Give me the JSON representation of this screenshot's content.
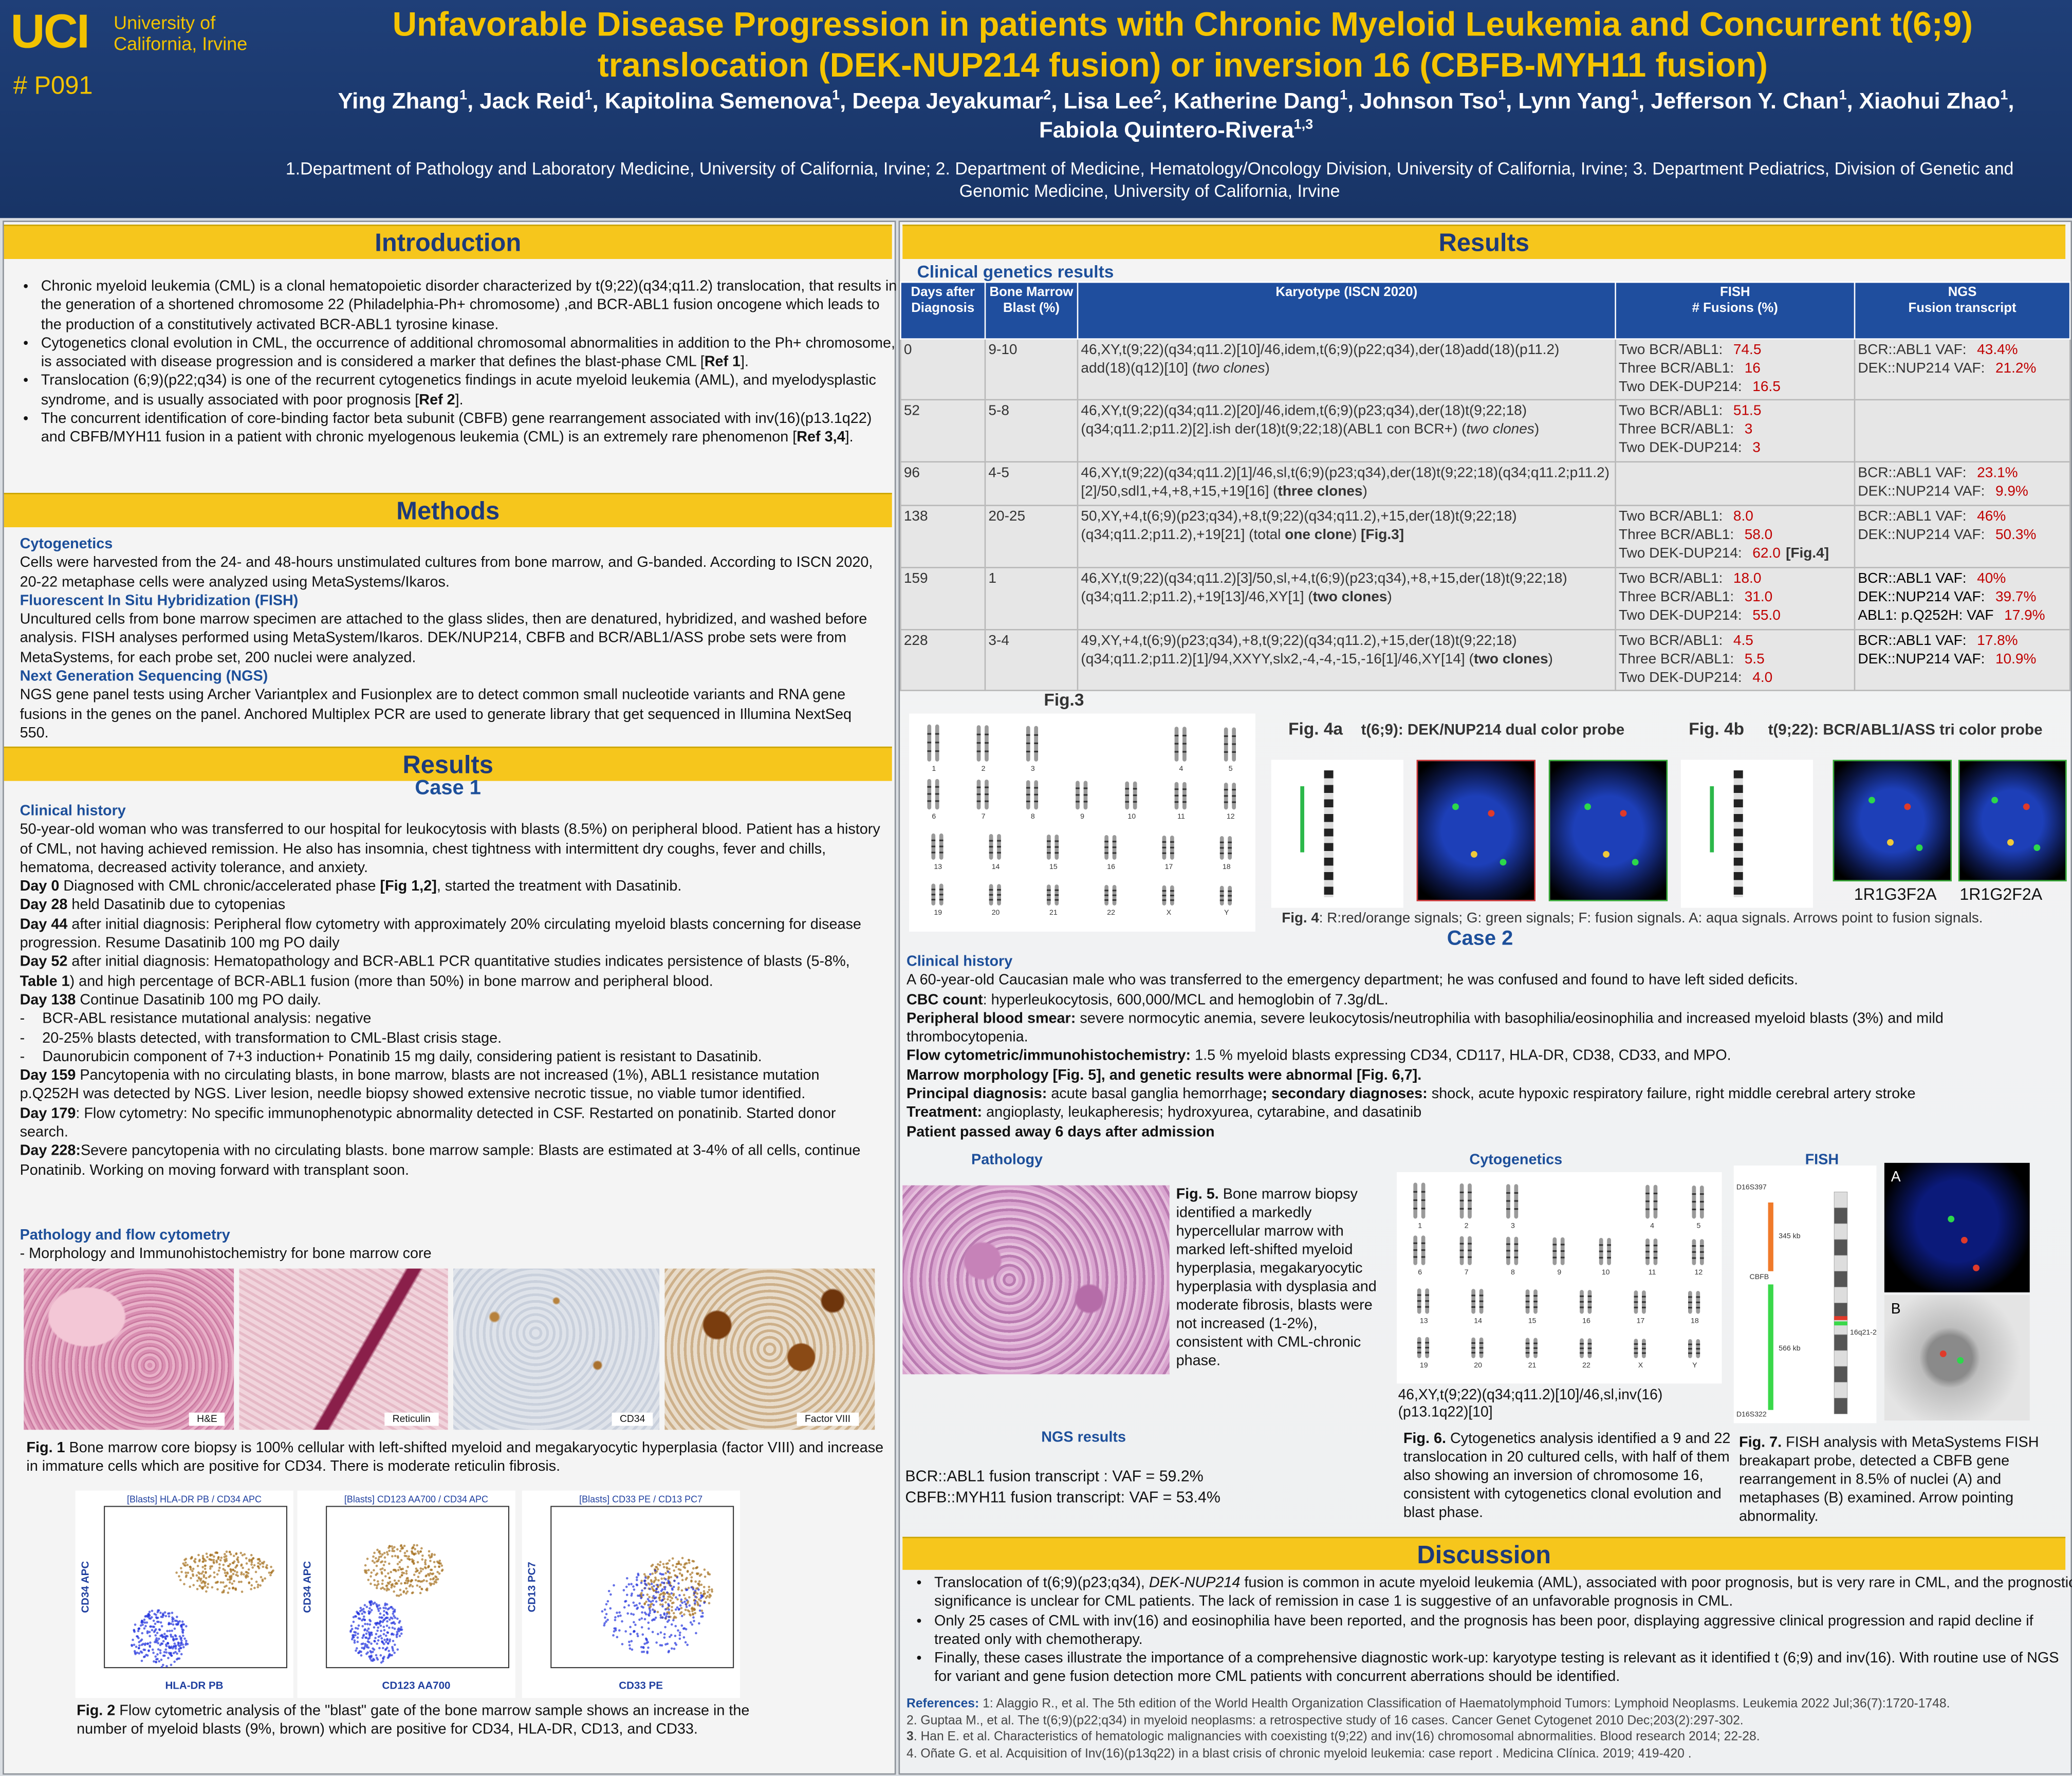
{
  "header": {
    "logo": "UCI",
    "university": "University of California, Irvine",
    "poster_id": "# P091",
    "title": "Unfavorable Disease Progression in patients with Chronic Myeloid Leukemia and Concurrent t(6;9) translocation (DEK-NUP214 fusion) or inversion 16 (CBFB-MYH11 fusion)",
    "authors": [
      "Ying Zhang",
      {
        "sup": "1"
      },
      ", Jack Reid",
      {
        "sup": "1"
      },
      ", Kapitolina Semenova",
      {
        "sup": "1"
      },
      ", Deepa Jeyakumar",
      {
        "sup": "2"
      },
      ", Lisa Lee",
      {
        "sup": "2"
      },
      ", Katherine Dang",
      {
        "sup": "1"
      },
      ", Johnson Tso",
      {
        "sup": "1"
      },
      ", Lynn Yang",
      {
        "sup": "1"
      },
      ", Jefferson Y. Chan",
      {
        "sup": "1"
      },
      ", Xiaohui Zhao",
      {
        "sup": "1"
      },
      ", Fabiola Quintero-Rivera",
      {
        "sup": "1,3"
      }
    ],
    "affiliations": "1.Department of Pathology and Laboratory Medicine, University of California, Irvine; 2. Department of Medicine, Hematology/Oncology Division, University of California, Irvine; 3. Department Pediatrics, Division of Genetic and Genomic Medicine, University of California, Irvine"
  },
  "introduction": {
    "heading": "Introduction",
    "bullets": [
      "Chronic myeloid leukemia (CML) is a clonal hematopoietic disorder characterized by t(9;22)(q34;q11.2) translocation, that results in the generation of a shortened chromosome 22 (Philadelphia-Ph+ chromosome) ,and BCR-ABL1 fusion oncogene which leads to the production of a constitutively activated BCR-ABL1 tyrosine kinase.",
      [
        "Cytogenetics clonal evolution in CML, the occurrence of additional chromosomal abnormalities in addition to the Ph+ chromosome, is associated with disease progression and is considered a marker that defines the blast-phase CML [",
        {
          "b": "Ref 1"
        },
        "]."
      ],
      [
        "Translocation (6;9)(p22;q34) is one of the recurrent cytogenetics findings in acute myeloid leukemia (AML), and myelodysplastic syndrome, and is usually associated with poor prognosis [",
        {
          "b": "Ref 2"
        },
        "]."
      ],
      [
        "The concurrent identification of core-binding factor beta subunit (CBFB) gene rearrangement associated with inv(16)(p13.1q22) and CBFB/MYH11 fusion in a patient with chronic myelogenous leukemia (CML) is an extremely rare phenomenon [",
        {
          "b": "Ref 3,4"
        },
        "]."
      ]
    ]
  },
  "methods": {
    "heading": "Methods",
    "sections": [
      {
        "title": "Cytogenetics",
        "text": "Cells were harvested from the 24- and 48-hours unstimulated cultures from bone marrow, and G-banded. According to ISCN 2020, 20-22 metaphase cells were analyzed using MetaSystems/Ikaros."
      },
      {
        "title": "Fluorescent In Situ Hybridization (FISH)",
        "text": "Uncultured cells from bone marrow specimen are attached to the glass slides, then are denatured, hybridized, and washed before analysis. FISH analyses performed using MetaSystem/Ikaros. DEK/NUP214, CBFB and BCR/ABL1/ASS probe sets were from MetaSystems, for each probe set, 200 nuclei were analyzed."
      },
      {
        "title": "Next Generation Sequencing (NGS)",
        "text": "NGS gene panel tests using Archer Variantplex and Fusionplex are to detect common small nucleotide variants and RNA gene fusions in the genes on the panel. Anchored Multiplex PCR are used to generate library that get sequenced in Illumina NextSeq 550."
      }
    ]
  },
  "results_left": {
    "heading": "Results",
    "case": "Case 1",
    "history_title": "Clinical history",
    "history": [
      "50-year-old woman who was transferred to our hospital for leukocytosis with blasts (8.5%) on peripheral blood. Patient has a history of CML, not having achieved remission. He also has insomnia, chest tightness with intermittent dry coughs, fever and chills, hematoma, decreased activity tolerance, and anxiety.",
      [
        {
          "b": "Day 0"
        },
        " Diagnosed with CML chronic/accelerated phase ",
        {
          "b": "[Fig 1,2]"
        },
        ", started the treatment with Dasatinib."
      ],
      [
        {
          "b": "Day 28"
        },
        " held Dasatinib due to cytopenias"
      ],
      [
        {
          "b": "Day 44"
        },
        " after initial diagnosis: Peripheral flow cytometry with approximately 20% circulating myeloid blasts concerning for disease progression. Resume Dasatinib 100 mg PO daily"
      ],
      [
        {
          "b": "Day 52"
        },
        " after initial diagnosis: Hematopathology and BCR-ABL1 PCR quantitative studies indicates persistence of blasts (5-8%, ",
        {
          "b": "Table 1"
        },
        ") and high percentage of BCR-ABL1 fusion (more than 50%) in bone marrow and peripheral blood."
      ],
      [
        {
          "b": "Day 138"
        },
        " Continue Dasatinib 100 mg PO daily."
      ],
      {
        "marker": "-",
        "text": "BCR-ABL resistance mutational analysis: negative"
      },
      {
        "marker": "-",
        "text": "20-25% blasts detected, with transformation to CML-Blast crisis stage."
      },
      {
        "marker": "-",
        "text": "Daunorubicin component of 7+3 induction+ Ponatinib 15 mg daily, considering patient is resistant to Dasatinib."
      },
      [
        {
          "b": "Day 159"
        },
        " Pancytopenia with no circulating blasts, in bone marrow, blasts are not increased (1%), ABL1 resistance mutation p.Q252H was detected by NGS. Liver lesion, needle biopsy showed extensive necrotic tissue, no viable tumor identified."
      ],
      [
        {
          "b": "Day 179"
        },
        ": Flow cytometry: No specific immunophenotypic abnormality detected in CSF. Restarted on ponatinib. Started donor search."
      ],
      [
        {
          "b": "Day 228:"
        },
        "Severe pancytopenia with no circulating blasts. bone marrow sample: Blasts are estimated at 3-4% of all cells, continue Ponatinib. Working on moving forward with transplant soon."
      ]
    ],
    "pathology_title": "Pathology and flow cytometry",
    "pathology_subtitle": "- Morphology and Immunohistochemistry for bone marrow core",
    "image_labels": [
      "H&E",
      "Reticulin",
      "CD34",
      "Factor VIII"
    ],
    "fig1_caption": [
      {
        "b": "Fig. 1"
      },
      " Bone marrow core biopsy is 100% cellular with left-shifted myeloid and megakaryocytic hyperplasia (factor VIII) and increase in immature cells which are positive for CD34. There is moderate reticulin fibrosis."
    ],
    "flow_plots": [
      {
        "title": "[Blasts] HLA-DR PB / CD34 APC",
        "x_label": "HLA-DR PB",
        "y_label": "CD34 APC"
      },
      {
        "title": "[Blasts] CD123 AA700 / CD34 APC",
        "x_label": "CD123 AA700",
        "y_label": "CD34 APC"
      },
      {
        "title": "[Blasts] CD33 PE / CD13 PC7",
        "x_label": "CD33 PE",
        "y_label": "CD13 PC7"
      }
    ],
    "fig2_caption": [
      {
        "b": "Fig. 2"
      },
      " Flow cytometric analysis of the \"blast\" gate of the bone marrow sample shows an increase in the number of myeloid blasts (9%, brown) which are positive for CD34, HLA-DR, CD13, and CD33."
    ]
  },
  "results_right": {
    "heading": "Results",
    "table_title": "Clinical genetics results",
    "table": {
      "headers": [
        "Days after Diagnosis",
        "Bone Marrow Blast (%)",
        "Karyotype (ISCN 2020)",
        "FISH\n# Fusions (%)",
        "NGS\nFusion transcript"
      ],
      "rows": [
        {
          "day": "0",
          "blast": "9-10",
          "karyotype": [
            "46,XY,t(9;22)(q34;q11.2)[10]/46,idem,t(6;9)(p22;q34),der(18)add(18)(p11.2) add(18)(q12)[10] (",
            {
              "i": "two clones"
            },
            ")"
          ],
          "fish": [
            {
              "label": "Two BCR/ABL1:",
              "value": "74.5"
            },
            {
              "label": "Three BCR/ABL1:",
              "value": "16"
            },
            {
              "label": "Two DEK-DUP214:",
              "value": "16.5"
            }
          ],
          "ngs": [
            {
              "label": "BCR::ABL1 VAF:",
              "value": "43.4%"
            },
            {
              "label": "DEK::NUP214 VAF:",
              "value": "21.2%"
            }
          ]
        },
        {
          "day": "52",
          "blast": "5-8",
          "karyotype": [
            "46,XY,t(9;22)(q34;q11.2)[20]/46,idem,t(6;9)(p23;q34),der(18)t(9;22;18)(q34;q11.2;p11.2)[2].ish der(18)t(9;22;18)(ABL1 con BCR+) (",
            {
              "i": "two clones"
            },
            ")"
          ],
          "fish": [
            {
              "label": "Two BCR/ABL1:",
              "value": "51.5"
            },
            {
              "label": "Three BCR/ABL1:",
              "value": "3"
            },
            {
              "label": "Two DEK-DUP214:",
              "value": "3"
            }
          ],
          "ngs": []
        },
        {
          "day": "96",
          "blast": "4-5",
          "karyotype": [
            "46,XY,t(9;22)(q34;q11.2)[1]/46,sl,t(6;9)(p23;q34),der(18)t(9;22;18)(q34;q11.2;p11.2)[2]/50,sdl1,+4,+8,+15,+19[16] (",
            {
              "b": "three clones"
            },
            ")"
          ],
          "fish": [],
          "ngs": [
            {
              "label": "BCR::ABL1 VAF:",
              "value": "23.1%"
            },
            {
              "label": "DEK::NUP214 VAF:",
              "value": "9.9%"
            }
          ]
        },
        {
          "day": "138",
          "blast": "20-25",
          "karyotype": [
            "50,XY,+4,t(6;9)(p23;q34),+8,t(9;22)(q34;q11.2),+15,der(18)t(9;22;18)(q34;q11.2;p11.2),+19[21] (total ",
            {
              "b": "one clone"
            },
            ") ",
            {
              "b": "[Fig.3]"
            }
          ],
          "fish": [
            {
              "label": "Two BCR/ABL1:",
              "value": "8.0"
            },
            {
              "label": "Three BCR/ABL1:",
              "value": "58.0"
            },
            {
              "label": "Two DEK-DUP214:",
              "value": "62.0",
              "note": "[Fig.4]"
            }
          ],
          "ngs": [
            {
              "label": "BCR::ABL1 VAF:",
              "value": "46%"
            },
            {
              "label": "DEK::NUP214 VAF:",
              "value": "50.3%"
            }
          ]
        },
        {
          "day": "159",
          "blast": "1",
          "karyotype": [
            "46,XY,t(9;22)(q34;q11.2)[3]/50,sl,+4,t(6;9)(p23;q34),+8,+15,der(18)t(9;22;18)(q34;q11.2;p11.2),+19[13]/46,XY[1] (",
            {
              "b": "two clones"
            },
            ")"
          ],
          "fish": [
            {
              "label": "Two BCR/ABL1:",
              "value": "18.0"
            },
            {
              "label": "Three BCR/ABL1:",
              "value": "31.0"
            },
            {
              "label": "Two DEK-DUP214:",
              "value": "55.0"
            }
          ],
          "ngs": [
            {
              "label": "BCR::ABL1 VAF:",
              "value": "40%"
            },
            {
              "label": "DEK::NUP214 VAF:",
              "value": "39.7%"
            },
            {
              "label": "ABL1: p.Q252H: VAF",
              "value": "17.9%"
            }
          ]
        },
        {
          "day": "228",
          "blast": "3-4",
          "karyotype": [
            "49,XY,+4,t(6;9)(p23;q34),+8,t(9;22)(q34;q11.2),+15,der(18)t(9;22;18)(q34;q11.2;p11.2)[1]/94,XXYY,slx2,-4,-4,-15,-16[1]/46,XY[14] (",
            {
              "b": "two clones"
            },
            ")"
          ],
          "fish": [
            {
              "label": "Two BCR/ABL1:",
              "value": "4.5"
            },
            {
              "label": "Three BCR/ABL1:",
              "value": "5.5"
            },
            {
              "label": "Two DEK-DUP214:",
              "value": "4.0"
            }
          ],
          "ngs": [
            {
              "label": "BCR::ABL1 VAF:",
              "value": "17.8%"
            },
            {
              "label": "DEK::NUP214 VAF:",
              "value": "10.9%"
            }
          ]
        }
      ]
    },
    "figures": {
      "karyotype_labels": [
        "1",
        "2",
        "3",
        "4",
        "5",
        "6",
        "7",
        "8",
        "9",
        "10",
        "11",
        "12",
        "13",
        "14",
        "15",
        "16",
        "17",
        "18",
        "19",
        "20",
        "21",
        "22",
        "X",
        "Y"
      ],
      "fig3_title": "Fig.3",
      "fig4a_title": "Fig. 4a",
      "fig4a_subtitle": "t(6;9): DEK/NUP214 dual color probe",
      "fig4b_title": "Fig. 4b",
      "fig4b_subtitle": "t(9;22): BCR/ABL1/ASS tri color probe",
      "fig4b_labels": [
        "1R1G3F2A",
        "1R1G2F2A"
      ],
      "fig4_caption": [
        {
          "b": "Fig. 4"
        },
        ": R:red/orange signals; G: green signals; F: fusion signals. A: aqua signals. Arrows point to fusion signals."
      ]
    },
    "case": "Case 2",
    "history_title": "Clinical history",
    "history": [
      "A 60-year-old Caucasian male who was transferred to the emergency department; he was confused and found to have left sided deficits.",
      [
        {
          "b": "CBC count"
        },
        ": hyperleukocytosis, 600,000/MCL and hemoglobin of 7.3g/dL."
      ],
      [
        {
          "b": "Peripheral blood smear:"
        },
        " severe normocytic anemia, severe leukocytosis/neutrophilia with basophilia/eosinophilia and increased myeloid blasts (3%) and mild thrombocytopenia."
      ],
      [
        {
          "b": "Flow cytometric/immunohistochemistry:"
        },
        " 1.5 % myeloid blasts expressing CD34, CD117, HLA-DR, CD38, CD33, and MPO."
      ],
      [
        {
          "b": "Marrow morphology [Fig. 5], and genetic results were abnormal [Fig. 6,7]."
        }
      ],
      [
        {
          "b": "Principal diagnosis:"
        },
        " acute basal ganglia hemorrhage",
        {
          "b": "; secondary diagnoses:"
        },
        " shock, acute hypoxic respiratory failure, right middle cerebral artery stroke"
      ],
      [
        {
          "b": "Treatment:"
        },
        " angioplasty, leukapheresis; hydroxyurea, cytarabine, and dasatinib"
      ],
      [
        {
          "b": "Patient passed away 6 days after admission"
        }
      ]
    ],
    "panels": {
      "pathology": "Pathology",
      "cytogenetics": "Cytogenetics",
      "fish": "FISH",
      "fig5_caption": [
        {
          "b": "Fig. 5."
        },
        " Bone marrow biopsy identified a markedly hypercellular marrow with marked left-shifted myeloid hyperplasia, megakaryocytic hyperplasia with dysplasia and moderate fibrosis, blasts were not increased (1-2%), consistent with CML-chronic phase."
      ],
      "karyotype": "46,XY,t(9;22)(q34;q11.2)[10]/46,sl,inv(16)(p13.1q22)[10]",
      "fig6_caption": [
        {
          "b": "Fig. 6."
        },
        " Cytogenetics analysis  identified a 9 and 22 translocation in 20 cultured cells, with half of them also showing an inversion of chromosome 16, consistent with cytogenetics clonal evolution and blast phase."
      ],
      "fish_probe_labels": [
        "D16S397",
        "345 kb",
        "CBFB",
        "566 kb",
        "16q21-22",
        "D16S322"
      ],
      "fish_image_labels": [
        "A",
        "B"
      ],
      "fig7_caption": [
        {
          "b": "Fig. 7."
        },
        " FISH analysis with MetaSystems FISH breakapart probe, detected a CBFB gene rearrangement in 8.5% of nuclei (A) and metaphases (B) examined. Arrow pointing abnormality."
      ],
      "ngs_title": "NGS results",
      "ngs_lines": [
        "BCR::ABL1 fusion transcript : VAF = 59.2%",
        "CBFB::MYH11 fusion transcript: VAF = 53.4%"
      ]
    }
  },
  "discussion": {
    "heading": "Discussion",
    "bullets": [
      [
        "Translocation of t(6;9)(p23;q34), ",
        {
          "i": "DEK-NUP214"
        },
        " fusion is common in acute myeloid leukemia (AML), associated with poor prognosis, but is very rare in CML, and the prognostic significance is unclear for CML patients. The lack of remission in case 1 is suggestive of an unfavorable prognosis in CML."
      ],
      "Only 25 cases of CML with inv(16) and eosinophilia have been reported, and the prognosis has been poor, displaying aggressive clinical progression and rapid decline if treated only with chemotherapy.",
      "Finally, these cases illustrate the importance of a comprehensive diagnostic work-up: karyotype testing is relevant as it identified t (6;9) and inv(16). With routine use of NGS for variant and gene fusion detection more CML patients with concurrent aberrations should be identified."
    ],
    "references": [
      [
        {
          "b": "References:"
        },
        " 1: Alaggio R., et al. The 5th edition of the World Health Organization Classification of Haematolymphoid Tumors: Lymphoid Neoplasms. Leukemia 2022 Jul;36(7):1720-1748."
      ],
      "2. Guptaa M., et al. The t(6;9)(p22;q34) in myeloid neoplasms: a retrospective study of 16 cases. Cancer Genet Cytogenet 2010 Dec;203(2):297-302.",
      [
        {
          "b": "3"
        },
        ". Han E. et al. Characteristics of hematologic malignancies with coexisting t(9;22) and inv(16) chromosomal abnormalities. Blood research 2014; 22-28."
      ],
      "4. Oñate G. et al. Acquisition of Inv(16)(p13q22) in a blast crisis of chronic myeloid leukemia: case report . Medicina Clínica. 2019; 419-420 ."
    ]
  }
}
